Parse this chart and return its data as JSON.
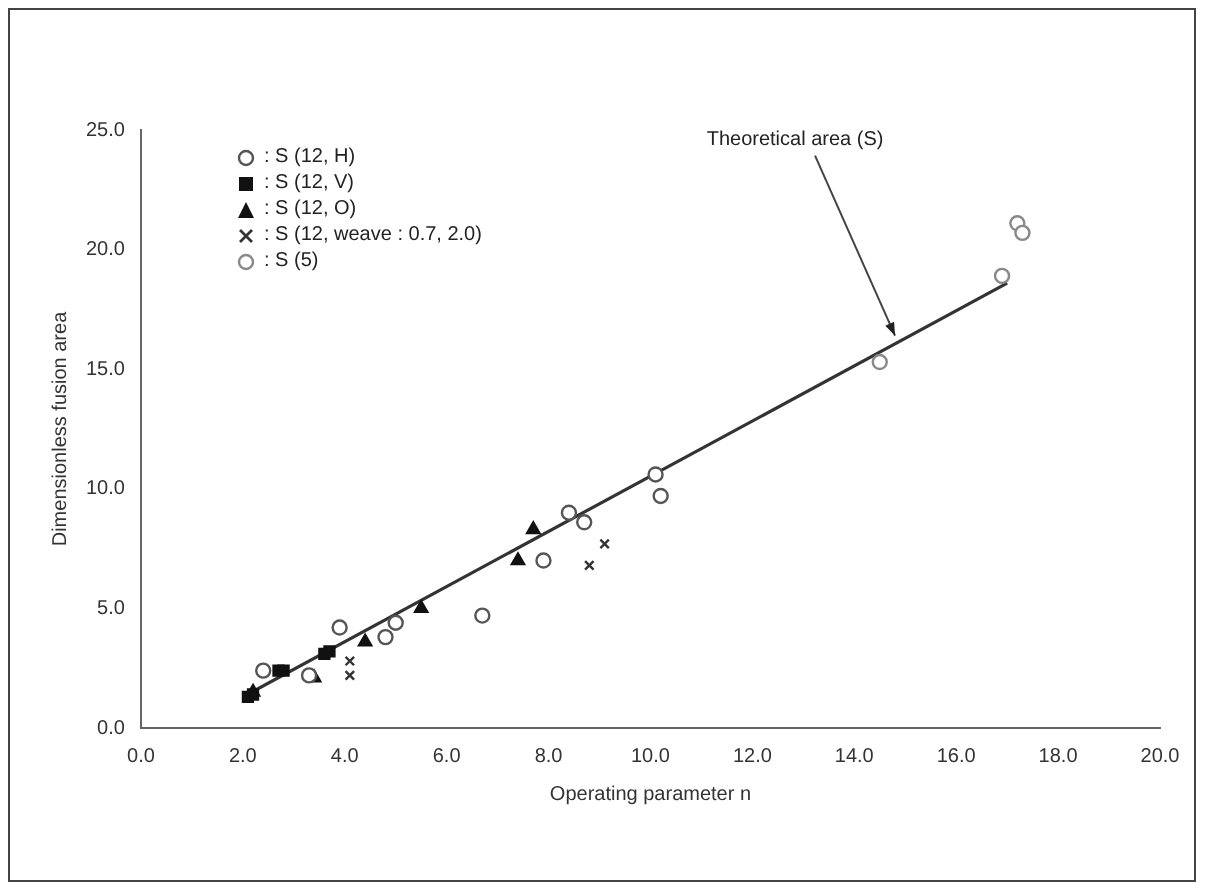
{
  "chart_data": {
    "type": "scatter",
    "xlabel": "Operating parameter n",
    "ylabel": "Dimensionless fusion area",
    "xlim": [
      0,
      20
    ],
    "ylim": [
      0,
      25
    ],
    "xticks": [
      {
        "value": 0,
        "label": "0.0"
      },
      {
        "value": 2,
        "label": "2.0"
      },
      {
        "value": 4,
        "label": "4.0"
      },
      {
        "value": 6,
        "label": "6.0"
      },
      {
        "value": 8,
        "label": "8.0"
      },
      {
        "value": 10,
        "label": "10.0"
      },
      {
        "value": 12,
        "label": "12.0"
      },
      {
        "value": 14,
        "label": "14.0"
      },
      {
        "value": 16,
        "label": "16.0"
      },
      {
        "value": 18,
        "label": "18.0"
      },
      {
        "value": 20,
        "label": "20.0"
      }
    ],
    "yticks": [
      {
        "value": 0,
        "label": "0.0"
      },
      {
        "value": 5,
        "label": "5.0"
      },
      {
        "value": 10,
        "label": "10.0"
      },
      {
        "value": 15,
        "label": "15.0"
      },
      {
        "value": 20,
        "label": "20.0"
      },
      {
        "value": 25,
        "label": "25.0"
      }
    ],
    "grid": false,
    "legend": "top left",
    "annotations": [
      {
        "text": "Theoretical area (S)",
        "x": 14.8,
        "y": 16.4
      }
    ],
    "series": [
      {
        "name": ": S (12, H)",
        "color": "#555555",
        "marker": "circle",
        "x": [
          2.4,
          3.3,
          3.9,
          4.8,
          5.0,
          6.7,
          7.9,
          8.4,
          8.7,
          10.1,
          10.2
        ],
        "values": [
          2.4,
          2.2,
          4.2,
          3.8,
          4.4,
          4.7,
          7.0,
          9.0,
          8.6,
          10.6,
          9.7
        ]
      },
      {
        "name": ": S (12, V)",
        "color": "#111111",
        "marker": "square",
        "x": [
          2.1,
          2.2,
          2.7,
          2.8,
          3.6,
          3.7
        ],
        "values": [
          1.3,
          1.4,
          2.4,
          2.4,
          3.1,
          3.2
        ]
      },
      {
        "name": ": S (12, O)",
        "color": "#111111",
        "marker": "triangle",
        "x": [
          2.2,
          3.4,
          4.4,
          5.5,
          7.4,
          7.7
        ],
        "values": [
          1.5,
          2.1,
          3.6,
          5.0,
          7.0,
          8.3
        ]
      },
      {
        "name": ": S (12, weave : 0.7, 2.0)",
        "color": "#333333",
        "marker": "cross",
        "x": [
          4.1,
          4.1,
          8.8,
          9.1
        ],
        "values": [
          2.2,
          2.8,
          6.8,
          7.7
        ]
      },
      {
        "name": ": S (5)",
        "color": "#888888",
        "marker": "circle",
        "x": [
          14.5,
          16.9,
          17.2,
          17.3
        ],
        "values": [
          15.3,
          18.9,
          21.1,
          20.7
        ]
      },
      {
        "type": "line",
        "color": "#333333",
        "marker": "none",
        "line_style": "solid",
        "x": [
          2.0,
          17.0
        ],
        "values": [
          1.3,
          18.6
        ]
      }
    ]
  }
}
